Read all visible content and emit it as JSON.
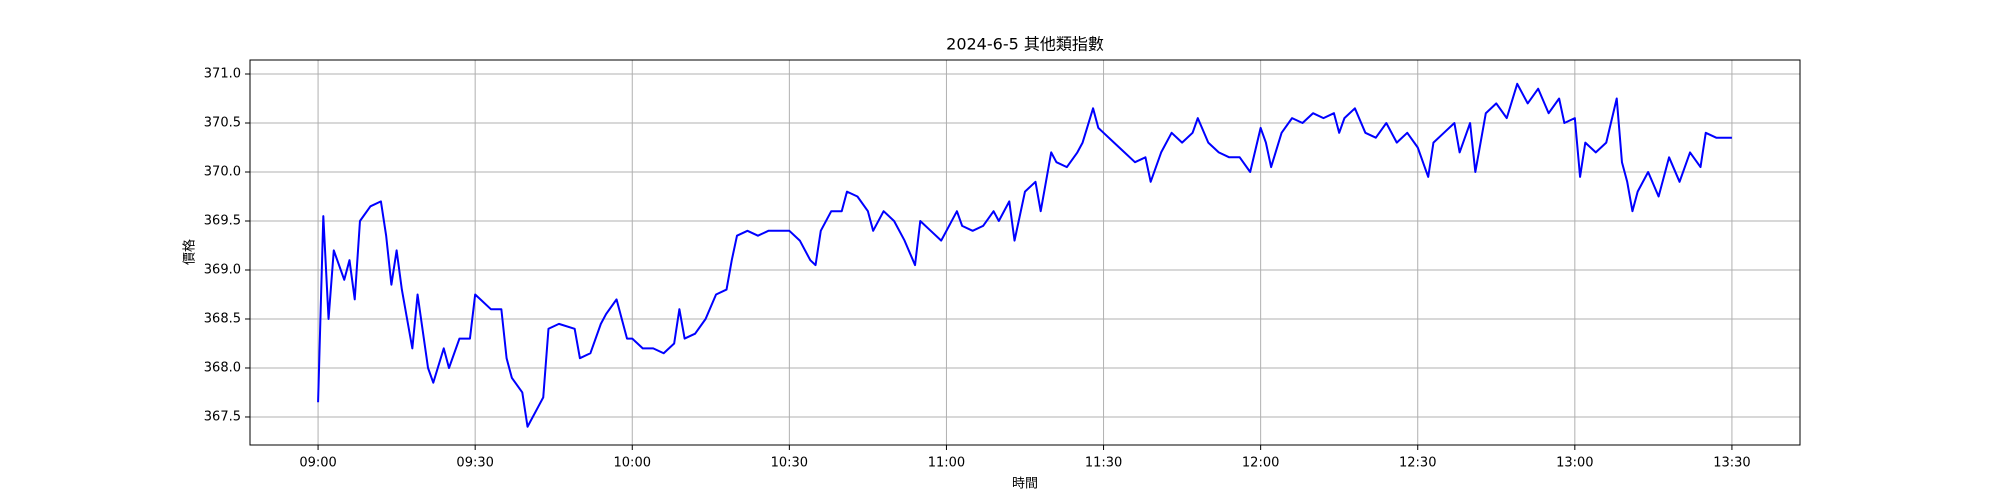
{
  "chart_data": {
    "type": "line",
    "title": "2024-6-5 其他類指數",
    "x_label": "時間",
    "y_label": "價格",
    "xlim": [
      "08:47",
      "13:43"
    ],
    "xticks": [
      "09:00",
      "09:30",
      "10:00",
      "10:30",
      "11:00",
      "11:30",
      "12:00",
      "12:30",
      "13:00",
      "13:30"
    ],
    "ylim": [
      367.214,
      371.143
    ],
    "yticks": [
      {
        "value": 367.5,
        "label": "367.5"
      },
      {
        "value": 368,
        "label": "368.0"
      },
      368.5,
      {
        "value": 369,
        "label": "369.0"
      },
      369.5,
      {
        "value": 370,
        "label": "370.0"
      },
      370.5,
      {
        "value": 371,
        "label": "371.0"
      }
    ],
    "grid": true,
    "series": [
      {
        "color": "#0000ff",
        "x": [
          "09:00",
          "09:01",
          "09:02",
          "09:03",
          "09:05",
          "09:06",
          "09:07",
          "09:08",
          "09:10",
          "09:12",
          "09:13",
          "09:14",
          "09:15",
          "09:16",
          "09:17",
          "09:18",
          "09:19",
          "09:21",
          "09:22",
          "09:24",
          "09:25",
          "09:27",
          "09:29",
          "09:30",
          "09:31",
          "09:33",
          "09:35",
          "09:36",
          "09:37",
          "09:39",
          "09:40",
          "09:42",
          "09:43",
          "09:44",
          "09:46",
          "09:49",
          "09:50",
          "09:52",
          "09:54",
          "09:55",
          "09:57",
          "09:59",
          "10:00",
          "10:02",
          "10:04",
          "10:06",
          "10:08",
          "10:09",
          "10:10",
          "10:12",
          "10:14",
          "10:16",
          "10:18",
          "10:19",
          "10:20",
          "10:22",
          "10:24",
          "10:26",
          "10:28",
          "10:30",
          "10:32",
          "10:34",
          "10:35",
          "10:36",
          "10:38",
          "10:40",
          "10:41",
          "10:43",
          "10:45",
          "10:46",
          "10:48",
          "10:50",
          "10:52",
          "10:54",
          "10:55",
          "10:57",
          "10:59",
          "11:00",
          "11:02",
          "11:03",
          "11:05",
          "11:07",
          "11:09",
          "11:10",
          "11:12",
          "11:13",
          "11:15",
          "11:17",
          "11:18",
          "11:19",
          "11:20",
          "11:21",
          "11:23",
          "11:25",
          "11:26",
          "11:28",
          "11:29",
          "11:30",
          "11:32",
          "11:34",
          "11:36",
          "11:38",
          "11:39",
          "11:41",
          "11:43",
          "11:45",
          "11:47",
          "11:48",
          "11:50",
          "11:52",
          "11:54",
          "11:56",
          "11:58",
          "12:00",
          "12:01",
          "12:02",
          "12:04",
          "12:06",
          "12:08",
          "12:10",
          "12:12",
          "12:14",
          "12:15",
          "12:16",
          "12:18",
          "12:20",
          "12:22",
          "12:24",
          "12:26",
          "12:28",
          "12:30",
          "12:32",
          "12:33",
          "12:35",
          "12:37",
          "12:38",
          "12:40",
          "12:41",
          "12:43",
          "12:45",
          "12:47",
          "12:49",
          "12:51",
          "12:53",
          "12:55",
          "12:57",
          "12:58",
          "13:00",
          "13:01",
          "13:02",
          "13:04",
          "13:06",
          "13:08",
          "13:09",
          "13:10",
          "13:11",
          "13:12",
          "13:14",
          "13:16",
          "13:18",
          "13:20",
          "13:22",
          "13:24",
          "13:25",
          "13:27",
          "13:30"
        ],
        "values": [
          367.65,
          369.55,
          368.5,
          369.2,
          368.9,
          369.1,
          368.7,
          369.5,
          369.65,
          369.7,
          369.35,
          368.85,
          369.2,
          368.8,
          368.5,
          368.2,
          368.75,
          368.0,
          367.85,
          368.2,
          368.0,
          368.3,
          368.3,
          368.75,
          368.7,
          368.6,
          368.6,
          368.1,
          367.9,
          367.75,
          367.4,
          367.6,
          367.7,
          368.4,
          368.45,
          368.4,
          368.1,
          368.15,
          368.45,
          368.55,
          368.7,
          368.3,
          368.3,
          368.2,
          368.2,
          368.15,
          368.25,
          368.6,
          368.3,
          368.35,
          368.5,
          368.75,
          368.8,
          369.1,
          369.35,
          369.4,
          369.35,
          369.4,
          369.4,
          369.4,
          369.3,
          369.1,
          369.05,
          369.4,
          369.6,
          369.6,
          369.8,
          369.75,
          369.6,
          369.4,
          369.6,
          369.5,
          369.3,
          369.05,
          369.5,
          369.4,
          369.3,
          369.4,
          369.6,
          369.45,
          369.4,
          369.45,
          369.6,
          369.5,
          369.7,
          369.3,
          369.8,
          369.9,
          369.6,
          369.9,
          370.2,
          370.1,
          370.05,
          370.2,
          370.3,
          370.65,
          370.45,
          370.4,
          370.3,
          370.2,
          370.1,
          370.15,
          369.9,
          370.2,
          370.4,
          370.3,
          370.4,
          370.55,
          370.3,
          370.2,
          370.15,
          370.15,
          370.0,
          370.45,
          370.3,
          370.05,
          370.4,
          370.55,
          370.5,
          370.6,
          370.55,
          370.6,
          370.4,
          370.55,
          370.65,
          370.4,
          370.35,
          370.5,
          370.3,
          370.4,
          370.25,
          369.95,
          370.3,
          370.4,
          370.5,
          370.2,
          370.5,
          370.0,
          370.6,
          370.7,
          370.55,
          370.9,
          370.7,
          370.85,
          370.6,
          370.75,
          370.5,
          370.55,
          369.95,
          370.3,
          370.2,
          370.3,
          370.75,
          370.1,
          369.9,
          369.6,
          369.8,
          370.0,
          369.75,
          370.15,
          369.9,
          370.2,
          370.05,
          370.4,
          370.35,
          370.35
        ]
      }
    ]
  }
}
